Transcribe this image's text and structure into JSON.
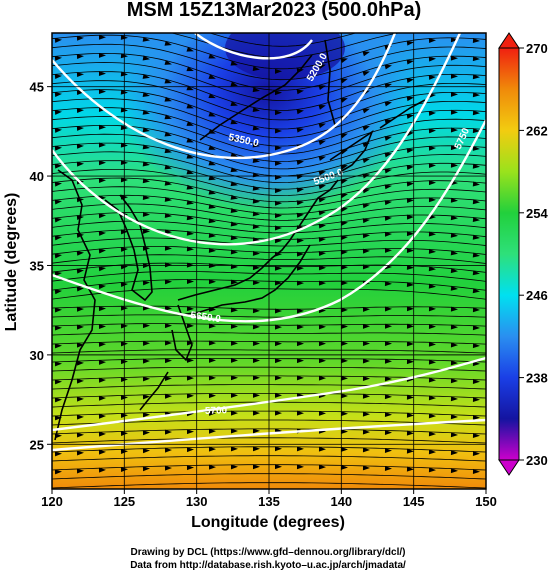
{
  "title": "MSM 15Z13Mar2023 (500.0hPa)",
  "xlabel": "Longitude (degrees)",
  "ylabel": "Latitude  (degrees)",
  "x_ticks": [
    "120",
    "125",
    "130",
    "135",
    "140",
    "145",
    "150"
  ],
  "y_ticks": [
    "25",
    "30",
    "35",
    "40",
    "45"
  ],
  "colorbar": {
    "ticks": [
      "270",
      "262",
      "254",
      "246",
      "238",
      "230"
    ],
    "stops": [
      {
        "v": 230,
        "c": "#cc00cc"
      },
      {
        "v": 234,
        "c": "#1414a0"
      },
      {
        "v": 238,
        "c": "#1a3fe6"
      },
      {
        "v": 242,
        "c": "#2a8ff0"
      },
      {
        "v": 246,
        "c": "#00e0f0"
      },
      {
        "v": 250,
        "c": "#2ee07a"
      },
      {
        "v": 254,
        "c": "#22d03c"
      },
      {
        "v": 258,
        "c": "#9ae21c"
      },
      {
        "v": 262,
        "c": "#f2cc10"
      },
      {
        "v": 266,
        "c": "#f08a0a"
      },
      {
        "v": 270,
        "c": "#f02010"
      }
    ]
  },
  "contour_labels": [
    "5200.0",
    "5350.0",
    "5500.0",
    "5650.0",
    "5700",
    "5750"
  ],
  "credits": {
    "line1": "Drawing by DCL (https://www.gfd–dennou.org/library/dcl/)",
    "line2": "Data from http://database.rish.kyoto–u.ac.jp/arch/jmadata/"
  },
  "colors": {
    "frame": "#000000",
    "grid": "#000000",
    "contour": "#ffffff",
    "coast": "#000000"
  }
}
